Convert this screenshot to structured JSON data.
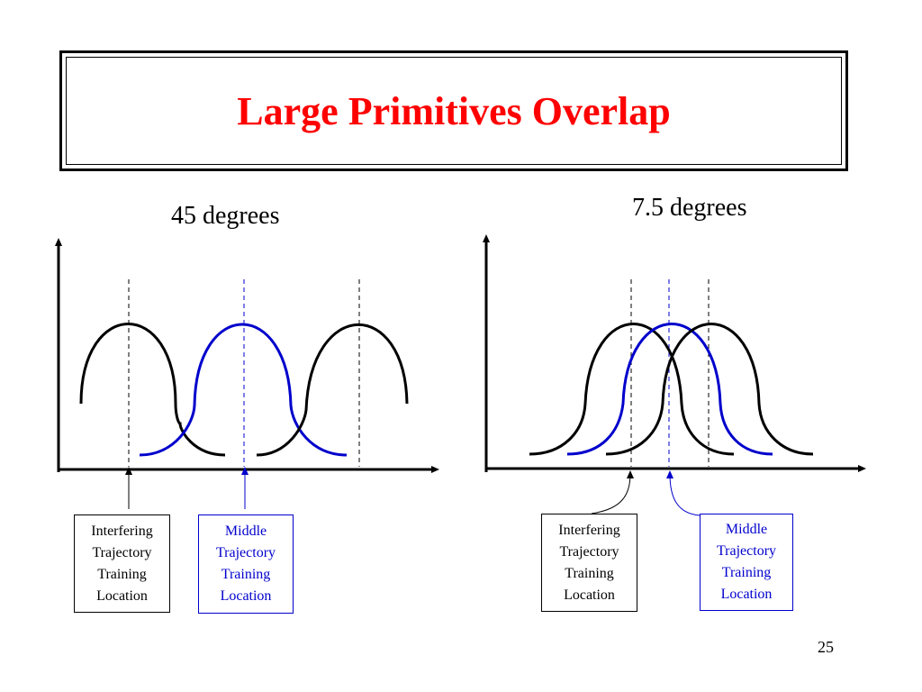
{
  "slide": {
    "title": "Large Primitives Overlap",
    "page_number": "25"
  },
  "panels": {
    "left": {
      "heading": "45 degrees",
      "interfering_label": [
        "Interfering",
        "Trajectory",
        "Training",
        "Location"
      ],
      "middle_label": [
        "Middle",
        "Trajectory",
        "Training",
        "Location"
      ]
    },
    "right": {
      "heading": "7.5 degrees",
      "interfering_label": [
        "Interfering",
        "Trajectory",
        "Training",
        "Location"
      ],
      "middle_label": [
        "Middle",
        "Trajectory",
        "Training",
        "Location"
      ]
    }
  },
  "colors": {
    "title": "#ff0000",
    "interfering": "#000000",
    "middle": "#0000cc"
  }
}
